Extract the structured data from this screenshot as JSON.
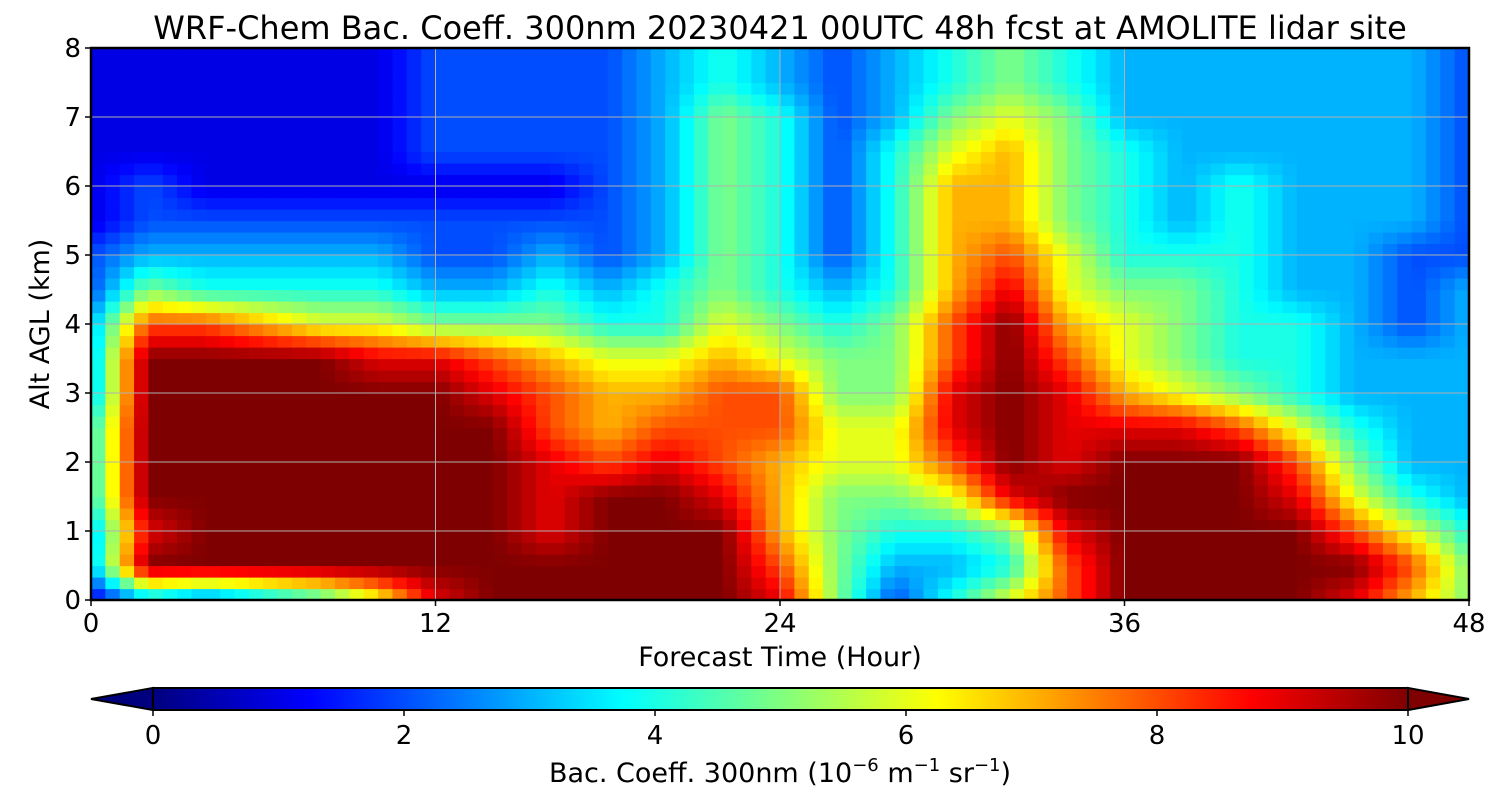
{
  "chart_data": {
    "type": "heatmap",
    "title": "WRF-Chem Bac. Coeff. 300nm  20230421 00UTC 48h fcst at AMOLITE lidar site",
    "xlabel": "Forecast Time (Hour)",
    "ylabel": "Alt AGL (km)",
    "xlim": [
      0,
      48
    ],
    "ylim": [
      0,
      8
    ],
    "x_ticks": [
      "0",
      "12",
      "24",
      "36",
      "48"
    ],
    "y_ticks": [
      "0",
      "1",
      "2",
      "3",
      "4",
      "5",
      "6",
      "7",
      "8"
    ],
    "grid": true,
    "colormap": "jet",
    "colorbar": {
      "orientation": "horizontal",
      "placement": "bottom",
      "range": [
        0,
        10
      ],
      "extend": "both",
      "ticks": [
        "0",
        "2",
        "4",
        "6",
        "8",
        "10"
      ],
      "label_main": "Bac. Coeff. 300nm  (10",
      "label_exp1": "−6",
      "label_unit1": " m",
      "label_exp2": "−1",
      "label_unit2": " sr",
      "label_exp3": "−1",
      "label_close": ")"
    },
    "x": [
      0,
      2,
      4,
      6,
      8,
      10,
      12,
      14,
      16,
      18,
      20,
      22,
      24,
      26,
      28,
      30,
      32,
      34,
      36,
      38,
      40,
      42,
      44,
      46,
      48
    ],
    "y": [
      0,
      0.5,
      1,
      1.5,
      2,
      2.5,
      3,
      3.5,
      4,
      4.5,
      5,
      5.5,
      6,
      6.5,
      7,
      7.5,
      8
    ],
    "z": [
      [
        1,
        3,
        2,
        3,
        4,
        6,
        9,
        10,
        10,
        10,
        10,
        10,
        9,
        5,
        2,
        4,
        6,
        8,
        10,
        10,
        10,
        10,
        9,
        7,
        5
      ],
      [
        3,
        10,
        10,
        10,
        10,
        10,
        10,
        10,
        10,
        10,
        10,
        10,
        8,
        5,
        3,
        3,
        4,
        8,
        10,
        10,
        10,
        10,
        10,
        8,
        5
      ],
      [
        3,
        9,
        10,
        10,
        10,
        10,
        10,
        10,
        9,
        10,
        10,
        10,
        7,
        5,
        4,
        4,
        5,
        9,
        10,
        10,
        10,
        10,
        8,
        6,
        4
      ],
      [
        4,
        10,
        10,
        10,
        10,
        10,
        10,
        10,
        9,
        10,
        10,
        9,
        7,
        5,
        5,
        6,
        9,
        10,
        10,
        10,
        10,
        9,
        6,
        4,
        3
      ],
      [
        4,
        10,
        10,
        10,
        10,
        10,
        10,
        10,
        9,
        8,
        9,
        8,
        7,
        6,
        6,
        8,
        10,
        9,
        10,
        10,
        10,
        8,
        5,
        3,
        3
      ],
      [
        4,
        10,
        10,
        10,
        10,
        10,
        10,
        10,
        8,
        7,
        8,
        8,
        8,
        6,
        6,
        9,
        10,
        9,
        9,
        9,
        8,
        6,
        4,
        3,
        3
      ],
      [
        3,
        10,
        10,
        10,
        10,
        10,
        10,
        9,
        8,
        7,
        7,
        8,
        8,
        5,
        5,
        9,
        10,
        9,
        7,
        6,
        5,
        4,
        3,
        3,
        3
      ],
      [
        3,
        10,
        10,
        10,
        10,
        9,
        9,
        8,
        7,
        6,
        6,
        7,
        6,
        5,
        5,
        8,
        10,
        8,
        6,
        5,
        4,
        4,
        3,
        3,
        3
      ],
      [
        3,
        8,
        8,
        7,
        6,
        6,
        5,
        5,
        5,
        4,
        4,
        6,
        5,
        4,
        5,
        8,
        10,
        7,
        6,
        5,
        4,
        4,
        3,
        2,
        3
      ],
      [
        2,
        5,
        4,
        4,
        4,
        4,
        3,
        3,
        4,
        3,
        4,
        5,
        4,
        3,
        4,
        7,
        9,
        6,
        5,
        5,
        4,
        3,
        3,
        2,
        3
      ],
      [
        2,
        3,
        3,
        3,
        3,
        3,
        2,
        2,
        3,
        2,
        3,
        5,
        4,
        2,
        4,
        7,
        8,
        6,
        4,
        4,
        4,
        3,
        3,
        2,
        2
      ],
      [
        1,
        2,
        2,
        2,
        2,
        2,
        2,
        2,
        2,
        2,
        3,
        5,
        4,
        2,
        4,
        7,
        7,
        5,
        4,
        3,
        4,
        3,
        3,
        3,
        2
      ],
      [
        1,
        2,
        1,
        1,
        1,
        1,
        1,
        1,
        1,
        2,
        3,
        5,
        4,
        2,
        4,
        7,
        7,
        5,
        4,
        3,
        4,
        3,
        3,
        3,
        2
      ],
      [
        1,
        1,
        1,
        1,
        1,
        1,
        2,
        2,
        2,
        2,
        3,
        5,
        4,
        2,
        4,
        6,
        7,
        5,
        4,
        3,
        3,
        3,
        3,
        3,
        2
      ],
      [
        1,
        1,
        1,
        1,
        1,
        1,
        2,
        2,
        2,
        2,
        3,
        5,
        4,
        2,
        3,
        5,
        6,
        5,
        3,
        3,
        3,
        3,
        3,
        3,
        2
      ],
      [
        1,
        1,
        1,
        1,
        1,
        1,
        2,
        2,
        2,
        2,
        3,
        4,
        3,
        2,
        3,
        4,
        5,
        4,
        3,
        3,
        3,
        3,
        3,
        3,
        2
      ],
      [
        1,
        1,
        1,
        1,
        1,
        1,
        2,
        2,
        2,
        2,
        3,
        4,
        3,
        2,
        3,
        4,
        5,
        4,
        3,
        3,
        3,
        3,
        3,
        3,
        2
      ]
    ]
  }
}
